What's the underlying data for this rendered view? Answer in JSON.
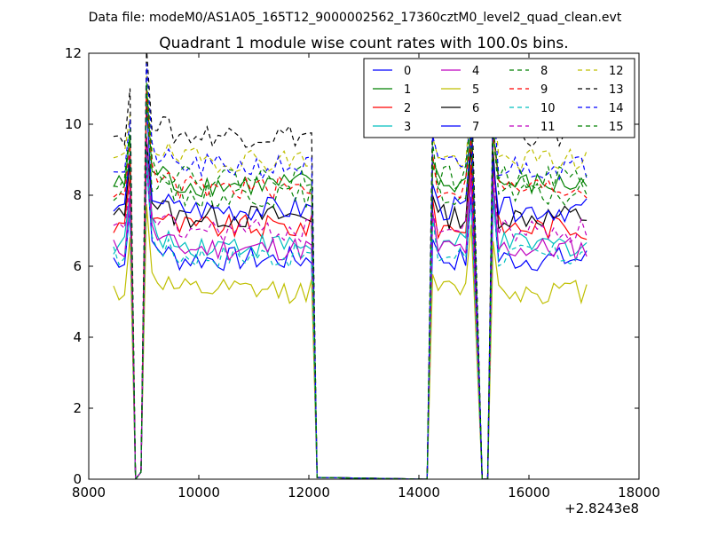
{
  "header": {
    "supertitle": "Data file: modeM0/AS1A05_165T12_9000002562_17360cztM0_level2_quad_clean.evt"
  },
  "chart_data": {
    "type": "line",
    "title": "Quadrant 1 module wise count rates with 100.0s bins.",
    "xlabel": "",
    "ylabel": "",
    "x_offset_label": "+2.8243e8",
    "xlim": [
      8000,
      18000
    ],
    "ylim": [
      0,
      12
    ],
    "xticks": [
      8000,
      10000,
      12000,
      14000,
      16000,
      18000
    ],
    "yticks": [
      0,
      2,
      4,
      6,
      8,
      10,
      12
    ],
    "grid": false,
    "legend_location": "top-right",
    "legend_columns": 4,
    "series": [
      {
        "name": "0",
        "color": "#0000ff",
        "dash": "solid",
        "base": 6.2
      },
      {
        "name": "1",
        "color": "#008000",
        "dash": "solid",
        "base": 8.3
      },
      {
        "name": "2",
        "color": "#ff0000",
        "dash": "solid",
        "base": 7.1
      },
      {
        "name": "3",
        "color": "#00bfbf",
        "dash": "solid",
        "base": 6.6
      },
      {
        "name": "4",
        "color": "#bf00bf",
        "dash": "solid",
        "base": 6.5
      },
      {
        "name": "5",
        "color": "#bfbf00",
        "dash": "solid",
        "base": 5.3
      },
      {
        "name": "6",
        "color": "#000000",
        "dash": "solid",
        "base": 7.4
      },
      {
        "name": "7",
        "color": "#0000ff",
        "dash": "solid",
        "base": 7.6
      },
      {
        "name": "8",
        "color": "#008000",
        "dash": "dashed",
        "base": 8.0
      },
      {
        "name": "9",
        "color": "#ff0000",
        "dash": "dashed",
        "base": 8.2
      },
      {
        "name": "10",
        "color": "#00bfbf",
        "dash": "dashed",
        "base": 6.3
      },
      {
        "name": "11",
        "color": "#bf00bf",
        "dash": "dashed",
        "base": 7.0
      },
      {
        "name": "12",
        "color": "#bfbf00",
        "dash": "dashed",
        "base": 9.0
      },
      {
        "name": "13",
        "color": "#000000",
        "dash": "dashed",
        "base": 9.7
      },
      {
        "name": "14",
        "color": "#0000ff",
        "dash": "dashed",
        "base": 8.8
      },
      {
        "name": "15",
        "color": "#008000",
        "dash": "dashed",
        "base": 8.5
      }
    ],
    "segments": [
      {
        "x_start": 8450,
        "x_end": 8750,
        "peak_at": 8750
      },
      {
        "x_start": 9050,
        "x_end": 12050,
        "peak_at": 9050
      },
      {
        "x_start": 14250,
        "x_end": 14950,
        "peak_at": 14950
      },
      {
        "x_start": 15350,
        "x_end": 17050,
        "peak_at": 15350
      }
    ],
    "gaps": [
      {
        "x": [
          8850,
          8950
        ],
        "y": [
          0.0,
          0.2
        ]
      },
      {
        "x": [
          12150,
          14150
        ],
        "y": [
          0.05,
          0.0
        ]
      },
      {
        "x": [
          15150,
          15250
        ],
        "y": [
          0.0,
          0.0
        ]
      }
    ]
  }
}
